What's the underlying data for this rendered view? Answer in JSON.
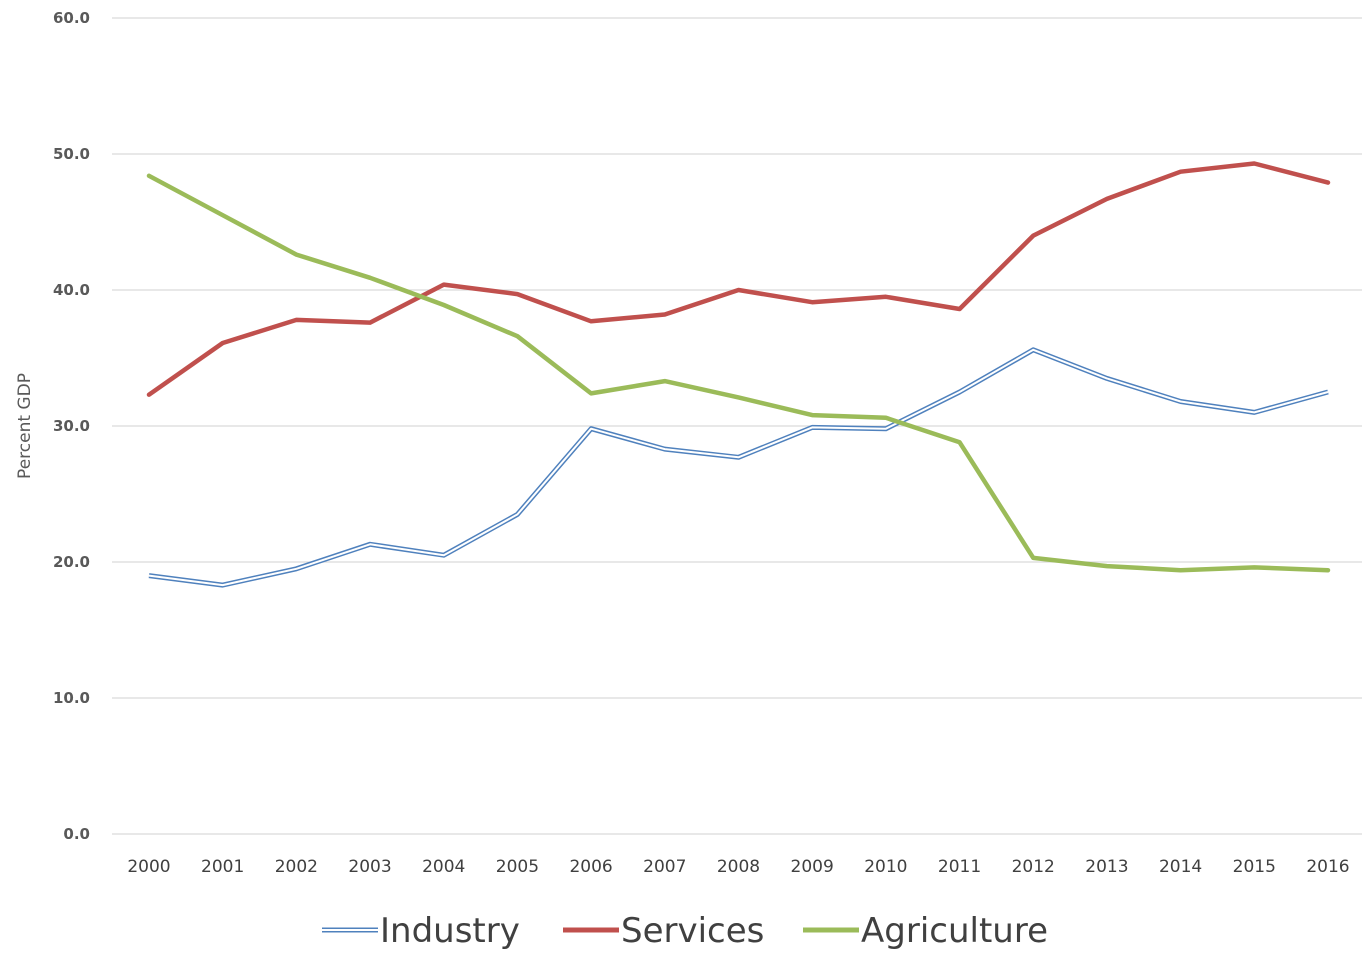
{
  "chart_data": {
    "type": "line",
    "title": "",
    "xlabel": "",
    "ylabel": "Percent GDP",
    "x": [
      "2000",
      "2001",
      "2002",
      "2003",
      "2004",
      "2005",
      "2006",
      "2007",
      "2008",
      "2009",
      "2010",
      "2011",
      "2012",
      "2013",
      "2014",
      "2015",
      "2016"
    ],
    "ylim": [
      0,
      60
    ],
    "yticks": [
      "0.0",
      "10.0",
      "20.0",
      "30.0",
      "40.0",
      "50.0",
      "60.0"
    ],
    "grid": true,
    "legend_position": "bottom",
    "series": [
      {
        "name": "Industry",
        "color": "#4f81bd",
        "style": "double",
        "values": [
          19.0,
          18.3,
          19.5,
          21.3,
          20.5,
          23.5,
          29.8,
          28.3,
          27.7,
          29.9,
          29.8,
          32.5,
          35.6,
          33.5,
          31.8,
          31.0,
          32.5
        ]
      },
      {
        "name": "Services",
        "color": "#c0504d",
        "style": "solid",
        "values": [
          32.3,
          36.1,
          37.8,
          37.6,
          40.4,
          39.7,
          37.7,
          38.2,
          40.0,
          39.1,
          39.5,
          38.6,
          44.0,
          46.7,
          48.7,
          49.3,
          47.9
        ]
      },
      {
        "name": "Agriculture",
        "color": "#9bbb59",
        "style": "solid",
        "values": [
          48.4,
          45.5,
          42.6,
          40.9,
          38.9,
          36.6,
          32.4,
          33.3,
          32.1,
          30.8,
          30.6,
          28.8,
          20.3,
          19.7,
          19.4,
          19.6,
          19.4
        ]
      }
    ]
  }
}
